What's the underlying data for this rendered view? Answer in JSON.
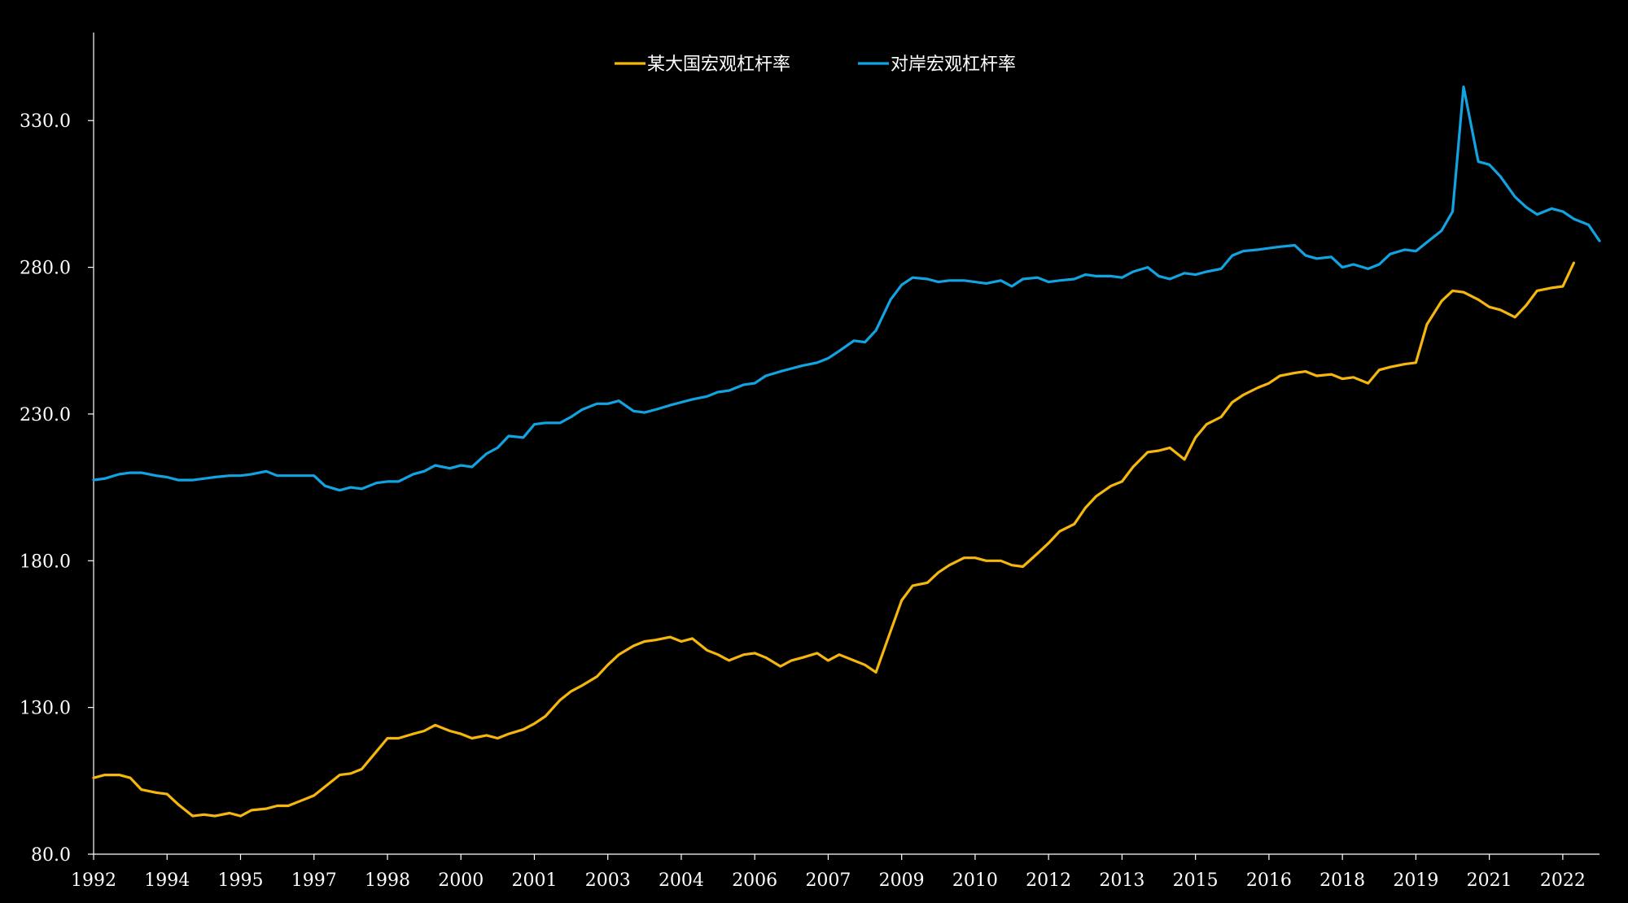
{
  "chart_data": {
    "type": "line",
    "title": "",
    "xlabel": "",
    "ylabel": "",
    "ylim": [
      80,
      360
    ],
    "y_ticks": [
      80,
      130,
      180,
      230,
      280,
      330
    ],
    "y_tick_labels": [
      "80.0",
      "130.0",
      "180.0",
      "230.0",
      "280.0",
      "330.0"
    ],
    "x_tick_labels": [
      "1992",
      "1994",
      "1995",
      "1997",
      "1998",
      "2000",
      "2001",
      "2003",
      "2004",
      "2006",
      "2007",
      "2009",
      "2010",
      "2012",
      "2013",
      "2015",
      "2016",
      "2018",
      "2019",
      "2021",
      "2022"
    ],
    "x_tick_positions": [
      1992.0,
      1994.0,
      1996.0,
      1998.0,
      2000.0,
      2002.0,
      2004.0,
      2006.0,
      2008.0,
      2010.0,
      2012.0,
      2014.0,
      2016.0,
      2018.0,
      2020.0,
      2022.0,
      2024.0,
      2026.0,
      2028.0,
      2030.0,
      2032.0
    ],
    "legend_position": "top-center",
    "grid": false,
    "series": [
      {
        "name": "某大国宏观杠杆率",
        "color": "#F5B70E",
        "points": [
          [
            1992.0,
            106.0
          ],
          [
            1992.3,
            107.0
          ],
          [
            1992.7,
            107.0
          ],
          [
            1993.0,
            106.0
          ],
          [
            1993.3,
            102.0
          ],
          [
            1993.7,
            101.0
          ],
          [
            1994.0,
            100.5
          ],
          [
            1994.3,
            97.0
          ],
          [
            1994.7,
            93.0
          ],
          [
            1995.0,
            93.5
          ],
          [
            1995.3,
            93.0
          ],
          [
            1995.7,
            94.0
          ],
          [
            1996.0,
            93.0
          ],
          [
            1996.3,
            95.0
          ],
          [
            1996.7,
            95.5
          ],
          [
            1997.0,
            96.5
          ],
          [
            1997.3,
            96.5
          ],
          [
            1997.7,
            98.5
          ],
          [
            1998.0,
            100.0
          ],
          [
            1998.3,
            103.0
          ],
          [
            1998.7,
            107.0
          ],
          [
            1999.0,
            107.5
          ],
          [
            1999.3,
            109.0
          ],
          [
            1999.7,
            115.0
          ],
          [
            2000.0,
            119.5
          ],
          [
            2000.3,
            119.5
          ],
          [
            2000.7,
            121.0
          ],
          [
            2001.0,
            122.0
          ],
          [
            2001.3,
            124.0
          ],
          [
            2001.7,
            122.0
          ],
          [
            2002.0,
            121.0
          ],
          [
            2002.3,
            119.5
          ],
          [
            2002.7,
            120.5
          ],
          [
            2003.0,
            119.5
          ],
          [
            2003.3,
            121.0
          ],
          [
            2003.7,
            122.5
          ],
          [
            2004.0,
            124.5
          ],
          [
            2004.3,
            127.0
          ],
          [
            2004.7,
            132.5
          ],
          [
            2005.0,
            135.5
          ],
          [
            2005.3,
            137.5
          ],
          [
            2005.7,
            140.5
          ],
          [
            2006.0,
            144.5
          ],
          [
            2006.3,
            148.0
          ],
          [
            2006.7,
            151.0
          ],
          [
            2007.0,
            152.5
          ],
          [
            2007.3,
            153.0
          ],
          [
            2007.7,
            154.0
          ],
          [
            2008.0,
            152.5
          ],
          [
            2008.3,
            153.5
          ],
          [
            2008.7,
            149.5
          ],
          [
            2009.0,
            148.0
          ],
          [
            2009.3,
            146.0
          ],
          [
            2009.7,
            148.0
          ],
          [
            2010.0,
            148.5
          ],
          [
            2010.3,
            147.0
          ],
          [
            2010.7,
            144.0
          ],
          [
            2011.0,
            146.0
          ],
          [
            2011.3,
            147.0
          ],
          [
            2011.7,
            148.5
          ],
          [
            2012.0,
            146.0
          ],
          [
            2012.3,
            148.0
          ],
          [
            2012.7,
            146.0
          ],
          [
            2013.0,
            144.5
          ],
          [
            2013.3,
            142.0
          ],
          [
            2013.7,
            156.0
          ],
          [
            2014.0,
            166.5
          ],
          [
            2014.3,
            171.5
          ],
          [
            2014.7,
            172.5
          ],
          [
            2015.0,
            176.0
          ],
          [
            2015.3,
            178.5
          ],
          [
            2015.7,
            181.0
          ],
          [
            2016.0,
            181.0
          ],
          [
            2016.3,
            180.0
          ],
          [
            2016.7,
            180.0
          ],
          [
            2017.0,
            178.5
          ],
          [
            2017.3,
            178.0
          ],
          [
            2017.7,
            182.5
          ],
          [
            2018.0,
            186.0
          ],
          [
            2018.3,
            190.0
          ],
          [
            2018.7,
            192.5
          ],
          [
            2019.0,
            198.0
          ],
          [
            2019.3,
            202.0
          ],
          [
            2019.7,
            205.5
          ],
          [
            2020.0,
            207.0
          ],
          [
            2020.3,
            212.0
          ],
          [
            2020.7,
            217.0
          ],
          [
            2021.0,
            217.5
          ],
          [
            2021.3,
            218.5
          ],
          [
            2021.7,
            214.5
          ],
          [
            2022.0,
            222.0
          ],
          [
            2022.3,
            226.5
          ],
          [
            2022.7,
            229.0
          ],
          [
            2023.0,
            234.0
          ],
          [
            2023.3,
            236.5
          ],
          [
            2023.7,
            239.0
          ],
          [
            2024.0,
            240.5
          ],
          [
            2024.3,
            243.0
          ],
          [
            2024.7,
            244.0
          ],
          [
            2025.0,
            244.5
          ],
          [
            2025.3,
            243.0
          ],
          [
            2025.7,
            243.5
          ],
          [
            2026.0,
            242.0
          ],
          [
            2026.3,
            242.5
          ],
          [
            2026.7,
            240.5
          ],
          [
            2027.0,
            245.0
          ],
          [
            2027.3,
            246.0
          ],
          [
            2027.7,
            247.0
          ],
          [
            2028.0,
            247.5
          ],
          [
            2028.3,
            260.5
          ],
          [
            2028.7,
            268.5
          ],
          [
            2029.0,
            272.0
          ],
          [
            2029.3,
            271.5
          ],
          [
            2029.7,
            269.0
          ],
          [
            2030.0,
            266.5
          ],
          [
            2030.3,
            265.5
          ],
          [
            2030.7,
            263.0
          ],
          [
            2031.0,
            267.0
          ],
          [
            2031.3,
            272.0
          ],
          [
            2031.7,
            273.0
          ],
          [
            2032.0,
            273.5
          ],
          [
            2032.3,
            281.5
          ]
        ]
      },
      {
        "name": "对岸宏观杠杆率",
        "color": "#12A3E2",
        "points": [
          [
            1992.0,
            207.5
          ],
          [
            1992.3,
            208.0
          ],
          [
            1992.7,
            209.5
          ],
          [
            1993.0,
            210.0
          ],
          [
            1993.3,
            210.0
          ],
          [
            1993.7,
            209.0
          ],
          [
            1994.0,
            208.5
          ],
          [
            1994.3,
            207.5
          ],
          [
            1994.7,
            207.5
          ],
          [
            1995.0,
            208.0
          ],
          [
            1995.3,
            208.5
          ],
          [
            1995.7,
            209.0
          ],
          [
            1996.0,
            209.0
          ],
          [
            1996.3,
            209.5
          ],
          [
            1996.7,
            210.5
          ],
          [
            1997.0,
            209.0
          ],
          [
            1997.3,
            209.0
          ],
          [
            1997.7,
            209.0
          ],
          [
            1998.0,
            209.0
          ],
          [
            1998.3,
            205.5
          ],
          [
            1998.7,
            204.0
          ],
          [
            1999.0,
            205.0
          ],
          [
            1999.3,
            204.5
          ],
          [
            1999.7,
            206.5
          ],
          [
            2000.0,
            207.0
          ],
          [
            2000.3,
            207.0
          ],
          [
            2000.7,
            209.5
          ],
          [
            2001.0,
            210.5
          ],
          [
            2001.3,
            212.5
          ],
          [
            2001.7,
            211.5
          ],
          [
            2002.0,
            212.5
          ],
          [
            2002.3,
            212.0
          ],
          [
            2002.7,
            216.5
          ],
          [
            2003.0,
            218.5
          ],
          [
            2003.3,
            222.5
          ],
          [
            2003.7,
            222.0
          ],
          [
            2004.0,
            226.5
          ],
          [
            2004.3,
            227.0
          ],
          [
            2004.7,
            227.0
          ],
          [
            2005.0,
            229.0
          ],
          [
            2005.3,
            231.5
          ],
          [
            2005.7,
            233.5
          ],
          [
            2006.0,
            233.5
          ],
          [
            2006.3,
            234.5
          ],
          [
            2006.7,
            231.0
          ],
          [
            2007.0,
            230.5
          ],
          [
            2007.3,
            231.5
          ],
          [
            2007.7,
            233.0
          ],
          [
            2008.0,
            234.0
          ],
          [
            2008.3,
            235.0
          ],
          [
            2008.7,
            236.0
          ],
          [
            2009.0,
            237.5
          ],
          [
            2009.3,
            238.0
          ],
          [
            2009.7,
            240.0
          ],
          [
            2010.0,
            240.5
          ],
          [
            2010.3,
            243.0
          ],
          [
            2010.7,
            244.5
          ],
          [
            2011.0,
            245.5
          ],
          [
            2011.3,
            246.5
          ],
          [
            2011.7,
            247.5
          ],
          [
            2012.0,
            249.0
          ],
          [
            2012.3,
            251.5
          ],
          [
            2012.7,
            255.0
          ],
          [
            2013.0,
            254.5
          ],
          [
            2013.3,
            258.5
          ],
          [
            2013.7,
            269.0
          ],
          [
            2014.0,
            274.0
          ],
          [
            2014.3,
            276.5
          ],
          [
            2014.7,
            276.0
          ],
          [
            2015.0,
            275.0
          ],
          [
            2015.3,
            275.5
          ],
          [
            2015.7,
            275.5
          ],
          [
            2016.0,
            275.0
          ],
          [
            2016.3,
            274.5
          ],
          [
            2016.7,
            275.5
          ],
          [
            2017.0,
            273.5
          ],
          [
            2017.3,
            276.0
          ],
          [
            2017.7,
            276.5
          ],
          [
            2018.0,
            275.0
          ],
          [
            2018.3,
            275.5
          ],
          [
            2018.7,
            276.0
          ],
          [
            2019.0,
            277.5
          ],
          [
            2019.3,
            277.0
          ],
          [
            2019.7,
            277.0
          ],
          [
            2020.0,
            276.5
          ],
          [
            2020.3,
            278.5
          ],
          [
            2020.7,
            280.0
          ],
          [
            2021.0,
            277.0
          ],
          [
            2021.3,
            276.0
          ],
          [
            2021.7,
            278.0
          ],
          [
            2022.0,
            277.5
          ],
          [
            2022.3,
            278.5
          ],
          [
            2022.7,
            279.5
          ],
          [
            2023.0,
            284.0
          ],
          [
            2023.3,
            285.5
          ],
          [
            2023.7,
            286.0
          ],
          [
            2024.0,
            286.5
          ],
          [
            2024.3,
            287.0
          ],
          [
            2024.7,
            287.5
          ],
          [
            2025.0,
            284.0
          ],
          [
            2025.3,
            283.0
          ],
          [
            2025.7,
            283.5
          ],
          [
            2026.0,
            280.0
          ],
          [
            2026.3,
            281.0
          ],
          [
            2026.7,
            279.5
          ],
          [
            2027.0,
            281.0
          ],
          [
            2027.3,
            284.5
          ],
          [
            2027.7,
            286.0
          ],
          [
            2028.0,
            285.5
          ],
          [
            2028.3,
            288.5
          ],
          [
            2028.7,
            292.5
          ],
          [
            2029.0,
            299.0
          ],
          [
            2029.3,
            341.5
          ],
          [
            2029.7,
            316.0
          ],
          [
            2030.0,
            315.0
          ],
          [
            2030.3,
            311.0
          ],
          [
            2030.7,
            304.0
          ],
          [
            2031.0,
            300.5
          ],
          [
            2031.3,
            298.0
          ],
          [
            2031.7,
            300.0
          ],
          [
            2032.0,
            299.0
          ],
          [
            2032.3,
            296.5
          ],
          [
            2032.7,
            294.5
          ],
          [
            2033.0,
            289.0
          ]
        ]
      }
    ]
  }
}
